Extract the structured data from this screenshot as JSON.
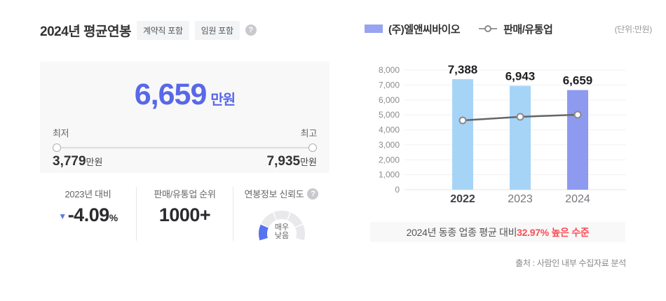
{
  "header": {
    "title": "2024년 평균연봉",
    "badges": [
      "계약직 포함",
      "임원 포함"
    ],
    "help_icon": "?"
  },
  "summary": {
    "value": "6,659",
    "unit": "만원",
    "min_label": "최저",
    "max_label": "최고",
    "min_value": "3,779",
    "min_unit": "만원",
    "max_value": "7,935",
    "max_unit": "만원"
  },
  "stats": {
    "yoy": {
      "label": "2023년 대비",
      "direction": "down",
      "value": "-4.09",
      "suffix": "%"
    },
    "rank": {
      "label": "판매/유통업 순위",
      "value": "1000+"
    },
    "trust": {
      "label": "연봉정보 신뢰도",
      "level_line1": "매우",
      "level_line2": "낮음",
      "gauge": {
        "segments": 5,
        "active_index": 0,
        "active_color": "#5773ef",
        "track_color": "#e9e9ec"
      }
    }
  },
  "chart_data": {
    "type": "bar+line",
    "categories": [
      "2022",
      "2023",
      "2024"
    ],
    "series": [
      {
        "name": "(주)엘앤씨바이오",
        "type": "bar",
        "values": [
          7388,
          6943,
          6659
        ],
        "value_labels": [
          "7,388",
          "6,943",
          "6,659"
        ],
        "bar_colors": [
          "#a6d4f7",
          "#a6d4f7",
          "#8e9aef"
        ]
      },
      {
        "name": "판매/유통업",
        "type": "line",
        "values": [
          4630,
          4870,
          5010
        ],
        "line_color": "#666666"
      }
    ],
    "unit_label": "(단위:만원)",
    "ylim": [
      0,
      8000
    ],
    "ytick_step": 1000,
    "grid": true,
    "legend_position": "top-left",
    "legend_swatch_color": "#98a3f1"
  },
  "banner": {
    "prefix": "2024년 동종 업종 평균 대비 ",
    "highlight": "32.97% 높은 수준",
    "highlight_color": "#fa4e57"
  },
  "source": "출처 : 사람인 내부 수집자료 분석",
  "colors": {
    "accent_blue": "#5868e8",
    "down_arrow": "#5b7be4"
  }
}
